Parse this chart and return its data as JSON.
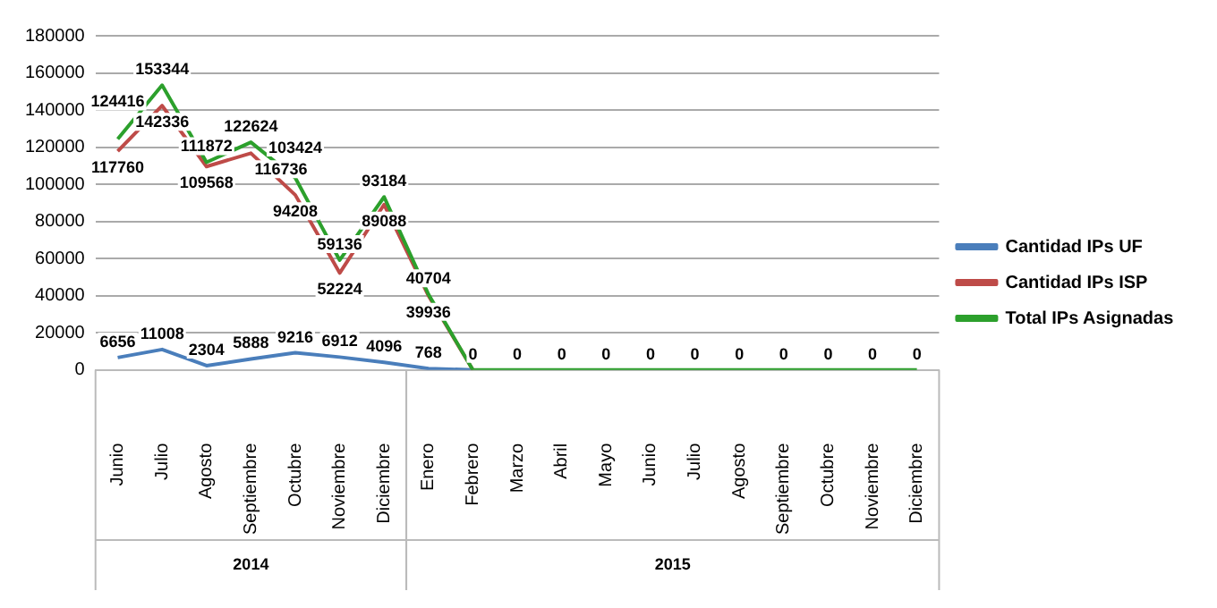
{
  "chart_data": {
    "type": "line",
    "categories": [
      "Junio",
      "Julio",
      "Agosto",
      "Septiembre",
      "Octubre",
      "Noviembre",
      "Diciembre",
      "Enero",
      "Febrero",
      "Marzo",
      "Abril",
      "Mayo",
      "Junio",
      "Julio",
      "Agosto",
      "Septiembre",
      "Octubre",
      "Noviembre",
      "Diciembre"
    ],
    "series": [
      {
        "name": "Cantidad IPs UF",
        "color": "#4a7ebb",
        "values": [
          6656,
          11008,
          2304,
          5888,
          9216,
          6912,
          4096,
          768,
          0,
          null,
          null,
          null,
          null,
          null,
          null,
          null,
          null,
          null,
          null
        ],
        "value_labels": [
          "6656",
          "11008",
          "2304",
          "5888",
          "9216",
          "6912",
          "4096",
          "768",
          null,
          null,
          null,
          null,
          null,
          null,
          null,
          null,
          null,
          null,
          null
        ]
      },
      {
        "name": "Cantidad IPs ISP",
        "color": "#be4b48",
        "values": [
          117760,
          142336,
          109568,
          116736,
          94208,
          52224,
          89088,
          39936,
          0,
          null,
          null,
          null,
          null,
          null,
          null,
          null,
          null,
          null,
          null
        ],
        "value_labels": [
          "117760",
          "142336",
          "109568",
          "116736",
          "94208",
          "52224",
          "89088",
          "39936",
          null,
          null,
          null,
          null,
          null,
          null,
          null,
          null,
          null,
          null,
          null
        ]
      },
      {
        "name": "Total IPs Asignadas",
        "color": "#2ca02c",
        "values": [
          124416,
          153344,
          111872,
          122624,
          103424,
          59136,
          93184,
          40704,
          0,
          0,
          0,
          0,
          0,
          0,
          0,
          0,
          0,
          0,
          0
        ],
        "value_labels": [
          "124416",
          "153344",
          "111872",
          "122624",
          "103424",
          "59136",
          "93184",
          "40704",
          "0",
          "0",
          "0",
          "0",
          "0",
          "0",
          "0",
          "0",
          "0",
          "0",
          "0"
        ]
      }
    ],
    "annotations": [
      "2014",
      "2015"
    ],
    "ylim": [
      0,
      180000
    ],
    "yticks": [
      0,
      20000,
      40000,
      60000,
      80000,
      100000,
      120000,
      140000,
      160000,
      180000
    ],
    "grid": "y",
    "legend": "right",
    "marker": "none",
    "line_style": "solid"
  }
}
